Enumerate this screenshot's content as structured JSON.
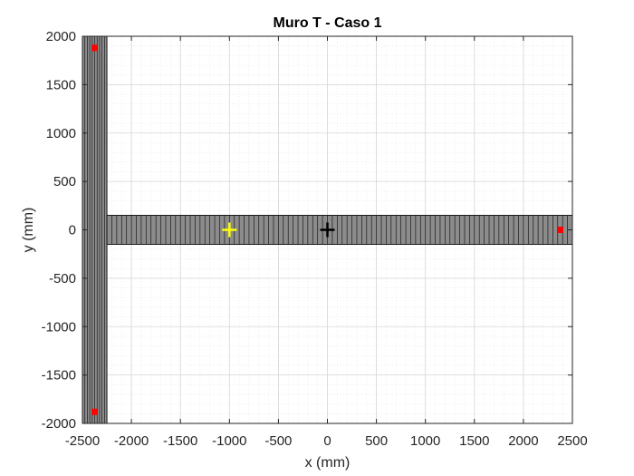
{
  "chart_data": {
    "type": "scatter",
    "title": "Muro T - Caso 1",
    "xlabel": "x (mm)",
    "ylabel": "y (mm)",
    "xlim": [
      -2500,
      2500
    ],
    "ylim": [
      -2000,
      2000
    ],
    "xticks": [
      -2500,
      -2000,
      -1500,
      -1000,
      -500,
      0,
      500,
      1000,
      1500,
      2000,
      2500
    ],
    "yticks": [
      -2000,
      -1500,
      -1000,
      -500,
      0,
      500,
      1000,
      1500,
      2000
    ],
    "xtick_labels": [
      "-2500",
      "-2000",
      "-1500",
      "-1000",
      "-500",
      "0",
      "500",
      "1000",
      "1500",
      "2000",
      "2500"
    ],
    "ytick_labels": [
      "-2000",
      "-1500",
      "-1000",
      "-500",
      "0",
      "500",
      "1000",
      "1500",
      "2000"
    ],
    "grid": true,
    "minor_grid": true,
    "sections": [
      {
        "name": "flange",
        "x": [
          -2500,
          -2250
        ],
        "y": [
          -2000,
          2000
        ],
        "fibers": 10,
        "fiber_axis": "x"
      },
      {
        "name": "web",
        "x": [
          -2250,
          2500
        ],
        "y": [
          -150,
          150
        ],
        "fibers": 95,
        "fiber_axis": "x"
      }
    ],
    "markers": [
      {
        "name": "red-point",
        "x": -2375,
        "y": 1880,
        "color": "#ff0000",
        "shape": "square"
      },
      {
        "name": "red-point",
        "x": -2375,
        "y": -1880,
        "color": "#ff0000",
        "shape": "square"
      },
      {
        "name": "red-point",
        "x": 2375,
        "y": 0,
        "color": "#ff0000",
        "shape": "square"
      },
      {
        "name": "yellow-centroid",
        "x": -1000,
        "y": 0,
        "color": "#ffff00",
        "shape": "plus"
      },
      {
        "name": "black-centroid",
        "x": 0,
        "y": 0,
        "color": "#000000",
        "shape": "plus"
      }
    ],
    "colors": {
      "fill": "#8c8c8c",
      "edge": "#1a1a1a"
    }
  }
}
